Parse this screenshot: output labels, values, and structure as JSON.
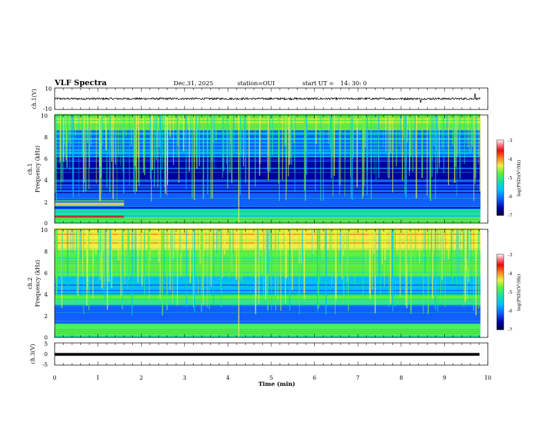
{
  "header": {
    "title": "VLF Spectra",
    "date": "Dec.31, 2025",
    "station": "station=OUI",
    "start_label": "start  UT =",
    "start_time": "14: 30: 0"
  },
  "chart_data": [
    {
      "id": "ch1-waveform",
      "type": "line",
      "ylabel": "ch.1(V)",
      "ylim": [
        -10,
        10
      ],
      "yticks": [
        "10",
        "-10"
      ],
      "description_values": {
        "baseline": 0,
        "typical_amplitude": 1.5
      }
    },
    {
      "id": "ch1-spectrogram",
      "type": "heatmap",
      "title": "",
      "ylabel_line1": "ch.1",
      "ylabel_line2": "Frequency  (kHz)",
      "ylim": [
        0,
        10
      ],
      "yticks": [
        "0",
        "2",
        "4",
        "6",
        "8",
        "10"
      ],
      "colorbar": {
        "label": "log(PSD)(V²/Hz)",
        "range": [
          -7,
          -3
        ],
        "ticks": [
          "-3",
          "-4",
          "-5",
          "-6",
          "-7"
        ]
      }
    },
    {
      "id": "ch2-spectrogram",
      "type": "heatmap",
      "ylabel_line1": "ch.2",
      "ylabel_line2": "Frequency  (kHz)",
      "ylim": [
        0,
        10
      ],
      "yticks": [
        "0",
        "2",
        "4",
        "6",
        "8",
        "10"
      ],
      "colorbar": {
        "label": "log(PSD)(V²/Hz)",
        "range": [
          -7,
          -3
        ],
        "ticks": [
          "-3",
          "-4",
          "-5",
          "-6",
          "-7"
        ]
      }
    },
    {
      "id": "ch3-waveform",
      "type": "line",
      "ylabel": "ch.3(V)",
      "ylim": [
        -5,
        5
      ],
      "yticks": [
        "5",
        "0",
        "-5"
      ],
      "description_values": {
        "baseline": 0
      }
    }
  ],
  "xaxis": {
    "label": "Time  (min)",
    "range": [
      0,
      10
    ],
    "ticks": [
      "0",
      "1",
      "2",
      "3",
      "4",
      "5",
      "6",
      "7",
      "8",
      "9",
      "10"
    ]
  },
  "colors": {
    "colormap": [
      "#000040",
      "#0000a0",
      "#1060ff",
      "#00c0ff",
      "#20e0a0",
      "#60f040",
      "#f0f040",
      "#ff8020",
      "#e01010",
      "#ff8090",
      "#ffffff"
    ]
  }
}
